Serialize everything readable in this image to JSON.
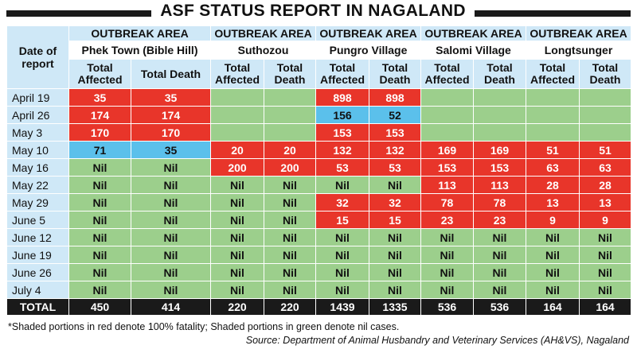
{
  "title": "ASF STATUS REPORT IN NAGALAND",
  "date_header": "Date of report",
  "area_label": "OUTBREAK AREA",
  "areas": [
    {
      "name": "Phek Town (Bible Hill)",
      "col1": "Total Affected",
      "col2": "Total Death"
    },
    {
      "name": "Suthozou",
      "col1": "Total Affected",
      "col2": "Total Death"
    },
    {
      "name": "Pungro Village",
      "col1": "Total Affected",
      "col2": "Total Death"
    },
    {
      "name": "Salomi Village",
      "col1": "Total Affected",
      "col2": "Total Death"
    },
    {
      "name": "Longtsunger",
      "col1": "Total Affected",
      "col2": "Total Death"
    }
  ],
  "colors": {
    "red": "#e8352a",
    "green": "#9ccf8c",
    "blue": "#5bc0eb",
    "header": "#cfe8f7"
  },
  "chart_data": {
    "type": "table",
    "title": "ASF STATUS REPORT IN NAGALAND",
    "columns": [
      "Date of report",
      "Phek Town (Bible Hill) Total Affected",
      "Phek Town (Bible Hill) Total Death",
      "Suthozou Total Affected",
      "Suthozou Total Death",
      "Pungro Village Total Affected",
      "Pungro Village Total Death",
      "Salomi Village Total Affected",
      "Salomi Village Total Death",
      "Longtsunger Total Affected",
      "Longtsunger Total Death"
    ],
    "rows": [
      {
        "date": "April 19",
        "cells": [
          {
            "v": "35",
            "c": "red"
          },
          {
            "v": "35",
            "c": "red"
          },
          {
            "v": "",
            "c": "green"
          },
          {
            "v": "",
            "c": "green"
          },
          {
            "v": "898",
            "c": "red"
          },
          {
            "v": "898",
            "c": "red"
          },
          {
            "v": "",
            "c": "green"
          },
          {
            "v": "",
            "c": "green"
          },
          {
            "v": "",
            "c": "green"
          },
          {
            "v": "",
            "c": "green"
          }
        ]
      },
      {
        "date": "April 26",
        "cells": [
          {
            "v": "174",
            "c": "red"
          },
          {
            "v": "174",
            "c": "red"
          },
          {
            "v": "",
            "c": "green"
          },
          {
            "v": "",
            "c": "green"
          },
          {
            "v": "156",
            "c": "blue"
          },
          {
            "v": "52",
            "c": "blue"
          },
          {
            "v": "",
            "c": "green"
          },
          {
            "v": "",
            "c": "green"
          },
          {
            "v": "",
            "c": "green"
          },
          {
            "v": "",
            "c": "green"
          }
        ]
      },
      {
        "date": "May 3",
        "cells": [
          {
            "v": "170",
            "c": "red"
          },
          {
            "v": "170",
            "c": "red"
          },
          {
            "v": "",
            "c": "green"
          },
          {
            "v": "",
            "c": "green"
          },
          {
            "v": "153",
            "c": "red"
          },
          {
            "v": "153",
            "c": "red"
          },
          {
            "v": "",
            "c": "green"
          },
          {
            "v": "",
            "c": "green"
          },
          {
            "v": "",
            "c": "green"
          },
          {
            "v": "",
            "c": "green"
          }
        ]
      },
      {
        "date": "May 10",
        "cells": [
          {
            "v": "71",
            "c": "blue"
          },
          {
            "v": "35",
            "c": "blue"
          },
          {
            "v": "20",
            "c": "red"
          },
          {
            "v": "20",
            "c": "red"
          },
          {
            "v": "132",
            "c": "red"
          },
          {
            "v": "132",
            "c": "red"
          },
          {
            "v": "169",
            "c": "red"
          },
          {
            "v": "169",
            "c": "red"
          },
          {
            "v": "51",
            "c": "red"
          },
          {
            "v": "51",
            "c": "red"
          }
        ]
      },
      {
        "date": "May 16",
        "cells": [
          {
            "v": "Nil",
            "c": "green"
          },
          {
            "v": "Nil",
            "c": "green"
          },
          {
            "v": "200",
            "c": "red"
          },
          {
            "v": "200",
            "c": "red"
          },
          {
            "v": "53",
            "c": "red"
          },
          {
            "v": "53",
            "c": "red"
          },
          {
            "v": "153",
            "c": "red"
          },
          {
            "v": "153",
            "c": "red"
          },
          {
            "v": "63",
            "c": "red"
          },
          {
            "v": "63",
            "c": "red"
          }
        ]
      },
      {
        "date": "May 22",
        "cells": [
          {
            "v": "Nil",
            "c": "green"
          },
          {
            "v": "Nil",
            "c": "green"
          },
          {
            "v": "Nil",
            "c": "green"
          },
          {
            "v": "Nil",
            "c": "green"
          },
          {
            "v": "Nil",
            "c": "green"
          },
          {
            "v": "Nil",
            "c": "green"
          },
          {
            "v": "113",
            "c": "red"
          },
          {
            "v": "113",
            "c": "red"
          },
          {
            "v": "28",
            "c": "red"
          },
          {
            "v": "28",
            "c": "red"
          }
        ]
      },
      {
        "date": "May 29",
        "cells": [
          {
            "v": "Nil",
            "c": "green"
          },
          {
            "v": "Nil",
            "c": "green"
          },
          {
            "v": "Nil",
            "c": "green"
          },
          {
            "v": "Nil",
            "c": "green"
          },
          {
            "v": "32",
            "c": "red"
          },
          {
            "v": "32",
            "c": "red"
          },
          {
            "v": "78",
            "c": "red"
          },
          {
            "v": "78",
            "c": "red"
          },
          {
            "v": "13",
            "c": "red"
          },
          {
            "v": "13",
            "c": "red"
          }
        ]
      },
      {
        "date": "June 5",
        "cells": [
          {
            "v": "Nil",
            "c": "green"
          },
          {
            "v": "Nil",
            "c": "green"
          },
          {
            "v": "Nil",
            "c": "green"
          },
          {
            "v": "Nil",
            "c": "green"
          },
          {
            "v": "15",
            "c": "red"
          },
          {
            "v": "15",
            "c": "red"
          },
          {
            "v": "23",
            "c": "red"
          },
          {
            "v": "23",
            "c": "red"
          },
          {
            "v": "9",
            "c": "red"
          },
          {
            "v": "9",
            "c": "red"
          }
        ]
      },
      {
        "date": "June 12",
        "cells": [
          {
            "v": "Nil",
            "c": "green"
          },
          {
            "v": "Nil",
            "c": "green"
          },
          {
            "v": "Nil",
            "c": "green"
          },
          {
            "v": "Nil",
            "c": "green"
          },
          {
            "v": "Nil",
            "c": "green"
          },
          {
            "v": "Nil",
            "c": "green"
          },
          {
            "v": "Nil",
            "c": "green"
          },
          {
            "v": "Nil",
            "c": "green"
          },
          {
            "v": "Nil",
            "c": "green"
          },
          {
            "v": "Nil",
            "c": "green"
          }
        ]
      },
      {
        "date": "June 19",
        "cells": [
          {
            "v": "Nil",
            "c": "green"
          },
          {
            "v": "Nil",
            "c": "green"
          },
          {
            "v": "Nil",
            "c": "green"
          },
          {
            "v": "Nil",
            "c": "green"
          },
          {
            "v": "Nil",
            "c": "green"
          },
          {
            "v": "Nil",
            "c": "green"
          },
          {
            "v": "Nil",
            "c": "green"
          },
          {
            "v": "Nil",
            "c": "green"
          },
          {
            "v": "Nil",
            "c": "green"
          },
          {
            "v": "Nil",
            "c": "green"
          }
        ]
      },
      {
        "date": "June 26",
        "cells": [
          {
            "v": "Nil",
            "c": "green"
          },
          {
            "v": "Nil",
            "c": "green"
          },
          {
            "v": "Nil",
            "c": "green"
          },
          {
            "v": "Nil",
            "c": "green"
          },
          {
            "v": "Nil",
            "c": "green"
          },
          {
            "v": "Nil",
            "c": "green"
          },
          {
            "v": "Nil",
            "c": "green"
          },
          {
            "v": "Nil",
            "c": "green"
          },
          {
            "v": "Nil",
            "c": "green"
          },
          {
            "v": "Nil",
            "c": "green"
          }
        ]
      },
      {
        "date": "July 4",
        "cells": [
          {
            "v": "Nil",
            "c": "green"
          },
          {
            "v": "Nil",
            "c": "green"
          },
          {
            "v": "Nil",
            "c": "green"
          },
          {
            "v": "Nil",
            "c": "green"
          },
          {
            "v": "Nil",
            "c": "green"
          },
          {
            "v": "Nil",
            "c": "green"
          },
          {
            "v": "Nil",
            "c": "green"
          },
          {
            "v": "Nil",
            "c": "green"
          },
          {
            "v": "Nil",
            "c": "green"
          },
          {
            "v": "Nil",
            "c": "green"
          }
        ]
      }
    ],
    "total": {
      "label": "TOTAL",
      "values": [
        "450",
        "414",
        "220",
        "220",
        "1439",
        "1335",
        "536",
        "536",
        "164",
        "164"
      ]
    }
  },
  "footnote": "*Shaded portions in red denote 100% fatality; Shaded portions in green denote nil cases.",
  "source": "Source: Department of Animal Husbandry and Veterinary Services (AH&VS), Nagaland"
}
